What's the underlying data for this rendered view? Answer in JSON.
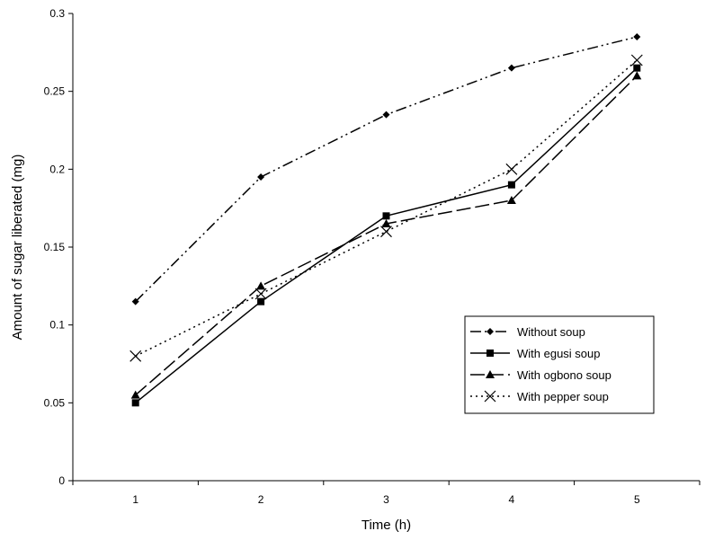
{
  "chart_data": {
    "type": "line",
    "title": "",
    "xlabel": "Time (h)",
    "ylabel": "Amount of sugar liberated (mg)",
    "categories": [
      "1",
      "2",
      "3",
      "4",
      "5"
    ],
    "x": [
      1,
      2,
      3,
      4,
      5
    ],
    "xlim": [
      0.5,
      5.5
    ],
    "ylim": [
      0,
      0.3
    ],
    "yticks": [
      0,
      0.05,
      0.1,
      0.15,
      0.2,
      0.25,
      0.3
    ],
    "ytick_labels": [
      "0",
      "0.05",
      "0.1",
      "0.15",
      "0.2",
      "0.25",
      "0.3"
    ],
    "grid": false,
    "legend_position": "lower-right",
    "series": [
      {
        "name": "Without soup",
        "values": [
          0.115,
          0.195,
          0.235,
          0.265,
          0.285
        ],
        "marker": "diamond",
        "line_style": "dash-dot-dot",
        "color": "#000000"
      },
      {
        "name": "With egusi soup",
        "values": [
          0.05,
          0.115,
          0.17,
          0.19,
          0.265
        ],
        "marker": "square",
        "line_style": "solid",
        "color": "#000000"
      },
      {
        "name": "With ogbono soup",
        "values": [
          0.055,
          0.125,
          0.165,
          0.18,
          0.26
        ],
        "marker": "triangle",
        "line_style": "long-dash",
        "color": "#000000"
      },
      {
        "name": "With pepper soup",
        "values": [
          0.08,
          0.12,
          0.16,
          0.2,
          0.27
        ],
        "marker": "x",
        "line_style": "dotted",
        "color": "#000000"
      }
    ]
  }
}
